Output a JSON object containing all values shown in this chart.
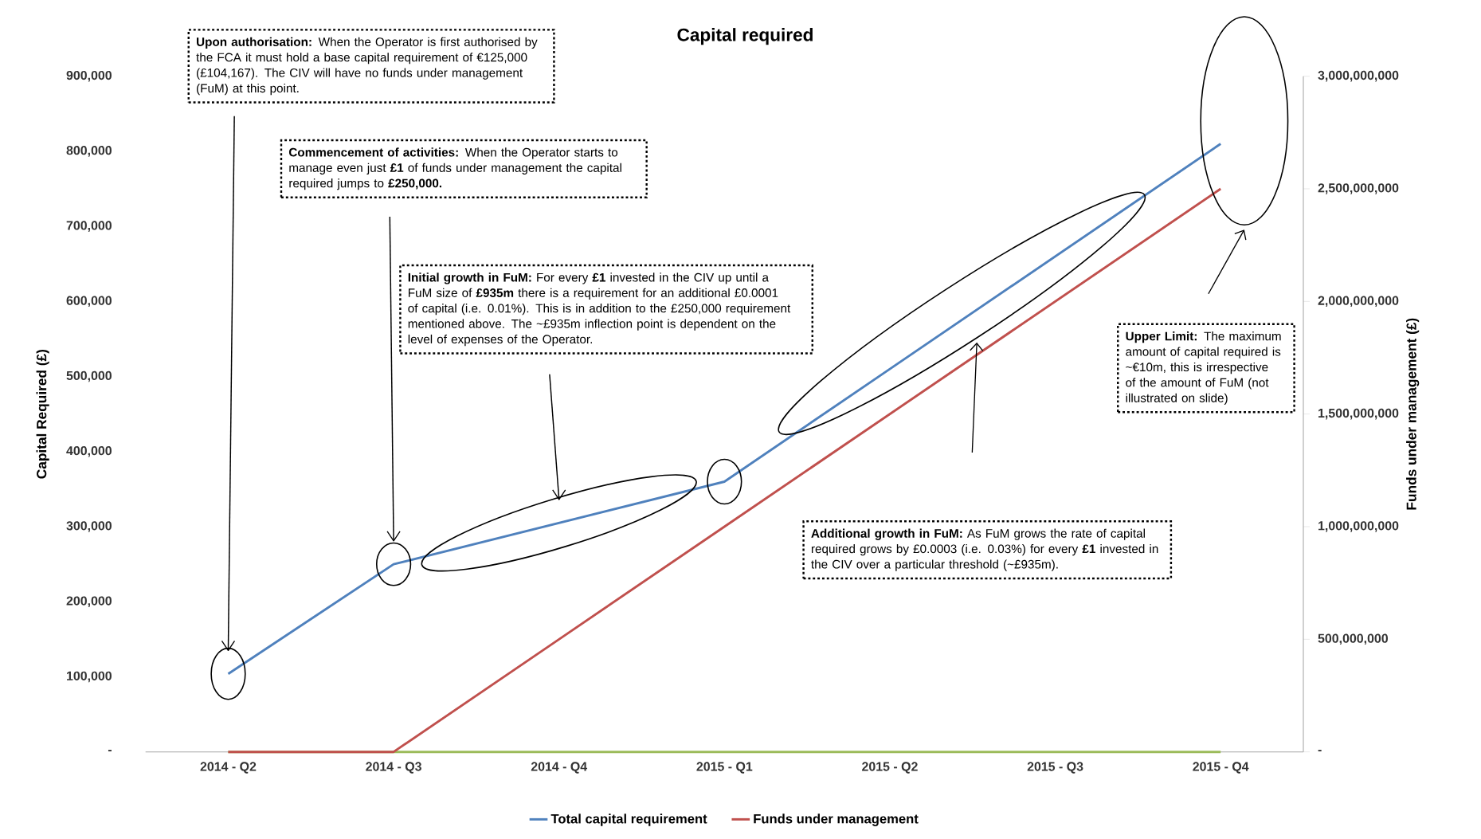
{
  "chart_data": {
    "type": "line",
    "title": "Capital required",
    "ylabel": "Capital Required (£)",
    "y2label": "Funds under management (£)",
    "categories": [
      "2014 - Q2",
      "2014 - Q3",
      "2014 - Q4",
      "2015 - Q1",
      "2015 - Q2",
      "2015 - Q3",
      "2015 - Q4"
    ],
    "series": [
      {
        "name": "Total capital requirement",
        "color": "#4f81bd",
        "values": [
          104000,
          250000,
          305000,
          360000,
          510000,
          660000,
          810000
        ]
      },
      {
        "name": "Funds under management",
        "color": "#c0504d",
        "axis": "y2",
        "values": [
          0,
          0,
          500000000,
          1000000000,
          1500000000,
          2000000000,
          2500000000
        ]
      },
      {
        "color": "#9bbb59",
        "values": [
          0,
          0,
          0,
          0,
          0,
          0,
          0
        ]
      }
    ],
    "ylim": [
      0,
      900000
    ],
    "yticks": [
      {
        "value": 0,
        "label": "-"
      },
      {
        "value": 100000,
        "label": "100,000"
      },
      {
        "value": 200000,
        "label": "200,000"
      },
      {
        "value": 300000,
        "label": "300,000"
      },
      {
        "value": 400000,
        "label": "400,000"
      },
      {
        "value": 500000,
        "label": "500,000"
      },
      {
        "value": 600000,
        "label": "600,000"
      },
      {
        "value": 700000,
        "label": "700,000"
      },
      {
        "value": 800000,
        "label": "800,000"
      },
      {
        "value": 900000,
        "label": "900,000"
      }
    ],
    "y2lim": [
      0,
      3000000000
    ],
    "y2ticks": [
      {
        "value": 0,
        "label": "-"
      },
      {
        "value": 500000000,
        "label": "500,000,000"
      },
      {
        "value": 1000000000,
        "label": "1,000,000,000"
      },
      {
        "value": 1500000000,
        "label": "1,500,000,000"
      },
      {
        "value": 2000000000,
        "label": "2,000,000,000"
      },
      {
        "value": 2500000000,
        "label": "2,500,000,000"
      },
      {
        "value": 3000000000,
        "label": "3,000,000,000"
      }
    ],
    "legend": "bottom",
    "annotations": [
      "**Upon authorisation:** When the Operator is first authorised by the FCA it must hold a base capital requirement of €125,000 (£104,167). The CIV will have no funds under management (FuM) at this point.",
      "**Commencement of activities:** When the Operator starts to manage even just **£1** of funds under management the capital required jumps to **£250,000.**",
      "**Initial growth in FuM:** For every **£1** invested in the CIV up until a FuM size of **£935m** there is a requirement for an additional £0.0001 of capital (i.e. 0.01%). This is in addition to the £250,000 requirement mentioned above. The ~£935m inflection point is dependent on the level of expenses of the Operator.",
      "**Additional growth in FuM:** As FuM grows the rate of capital required grows by £0.0003 (i.e. 0.03%) for every **£1** invested in the CIV over a particular threshold (~£935m).",
      "**Upper Limit:** The maximum amount of capital required is ~€10m, this is irrespective of the amount of FuM (not illustrated on slide)"
    ]
  }
}
